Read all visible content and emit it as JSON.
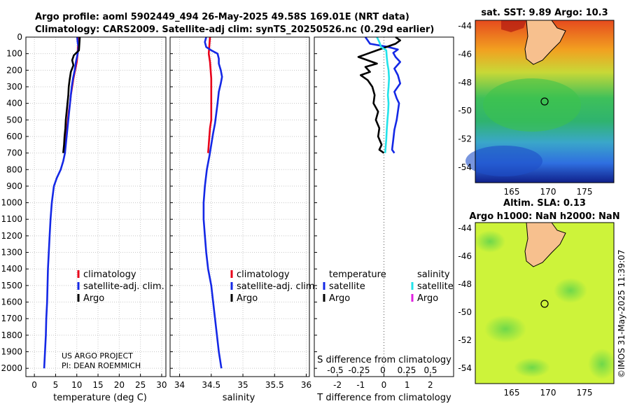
{
  "title": {
    "line1": "Argo profile: aoml 5902449_494 26-May-2025 49.58S 169.01E (NRT data)",
    "line2": "Climatology: CARS2009. Satellite-adj clim: synTS_20250526.nc (0.29d earlier)"
  },
  "colors": {
    "climatology": "#e8001a",
    "satellite": "#1428e6",
    "argo": "#000000",
    "s_satellite": "#22e3ea",
    "s_argo": "#e020e0"
  },
  "chart_data": [
    {
      "type": "line",
      "panel": "temperature",
      "xlabel": "temperature (deg C)",
      "ylabel": "",
      "xlim": [
        -2,
        31
      ],
      "ylim": [
        2050,
        0
      ],
      "xticks": [
        "0",
        "5",
        "10",
        "15",
        "20",
        "25",
        "30"
      ],
      "yticks": [
        "0",
        "100",
        "200",
        "300",
        "400",
        "500",
        "600",
        "700",
        "800",
        "900",
        "1000",
        "1100",
        "1200",
        "1300",
        "1400",
        "1500",
        "1600",
        "1700",
        "1800",
        "1900",
        "2000"
      ],
      "grid": true,
      "legend": [
        "climatology",
        "satellite-adj. clim.",
        "Argo"
      ],
      "annotation": [
        "US ARGO PROJECT",
        "PI: DEAN ROEMMICH"
      ],
      "series": [
        {
          "name": "climatology",
          "points": [
            [
              10.4,
              0
            ],
            [
              10.3,
              50
            ],
            [
              10.2,
              100
            ],
            [
              10.0,
              150
            ],
            [
              9.6,
              200
            ],
            [
              9.2,
              250
            ],
            [
              8.9,
              300
            ],
            [
              8.6,
              350
            ],
            [
              8.4,
              400
            ],
            [
              8.1,
              450
            ],
            [
              7.9,
              500
            ],
            [
              7.7,
              550
            ],
            [
              7.5,
              600
            ],
            [
              7.3,
              650
            ],
            [
              7.0,
              700
            ]
          ]
        },
        {
          "name": "satellite-adj. clim.",
          "points": [
            [
              10.1,
              0
            ],
            [
              10.2,
              30
            ],
            [
              10.4,
              60
            ],
            [
              10.2,
              100
            ],
            [
              9.8,
              150
            ],
            [
              9.5,
              200
            ],
            [
              9.1,
              250
            ],
            [
              8.8,
              300
            ],
            [
              8.6,
              350
            ],
            [
              8.4,
              400
            ],
            [
              8.2,
              450
            ],
            [
              8.0,
              500
            ],
            [
              7.8,
              550
            ],
            [
              7.6,
              600
            ],
            [
              7.4,
              650
            ],
            [
              7.2,
              700
            ],
            [
              6.8,
              750
            ],
            [
              6.2,
              800
            ],
            [
              5.3,
              850
            ],
            [
              4.6,
              900
            ],
            [
              4.1,
              1000
            ],
            [
              3.8,
              1100
            ],
            [
              3.6,
              1200
            ],
            [
              3.4,
              1300
            ],
            [
              3.2,
              1400
            ],
            [
              3.1,
              1500
            ],
            [
              3.0,
              1600
            ],
            [
              2.8,
              1700
            ],
            [
              2.7,
              1800
            ],
            [
              2.5,
              1900
            ],
            [
              2.3,
              2000
            ]
          ]
        },
        {
          "name": "Argo",
          "points": [
            [
              10.7,
              0
            ],
            [
              10.6,
              40
            ],
            [
              10.5,
              80
            ],
            [
              9.3,
              110
            ],
            [
              8.9,
              140
            ],
            [
              9.2,
              170
            ],
            [
              8.6,
              210
            ],
            [
              8.3,
              260
            ],
            [
              8.1,
              300
            ],
            [
              8.0,
              350
            ],
            [
              7.8,
              400
            ],
            [
              7.6,
              450
            ],
            [
              7.4,
              500
            ],
            [
              7.3,
              550
            ],
            [
              7.1,
              600
            ],
            [
              7.0,
              650
            ],
            [
              6.8,
              700
            ]
          ]
        }
      ]
    },
    {
      "type": "line",
      "panel": "salinity",
      "xlabel": "salinity",
      "xlim": [
        33.85,
        36.05
      ],
      "ylim": [
        2050,
        0
      ],
      "xticks": [
        "34",
        "34.5",
        "35",
        "35.5",
        "36"
      ],
      "grid": true,
      "legend": [
        "climatology",
        "satellite-adj. clim.",
        "Argo"
      ],
      "series": [
        {
          "name": "climatology",
          "points": [
            [
              34.48,
              0
            ],
            [
              34.47,
              50
            ],
            [
              34.46,
              100
            ],
            [
              34.48,
              150
            ],
            [
              34.49,
              200
            ],
            [
              34.5,
              250
            ],
            [
              34.5,
              300
            ],
            [
              34.5,
              350
            ],
            [
              34.5,
              400
            ],
            [
              34.5,
              450
            ],
            [
              34.5,
              500
            ],
            [
              34.48,
              550
            ],
            [
              34.47,
              600
            ],
            [
              34.46,
              650
            ],
            [
              34.45,
              700
            ]
          ]
        },
        {
          "name": "satellite-adj. clim.",
          "points": [
            [
              34.42,
              0
            ],
            [
              34.4,
              30
            ],
            [
              34.42,
              60
            ],
            [
              34.5,
              80
            ],
            [
              34.6,
              100
            ],
            [
              34.62,
              130
            ],
            [
              34.62,
              160
            ],
            [
              34.65,
              200
            ],
            [
              34.67,
              240
            ],
            [
              34.65,
              280
            ],
            [
              34.62,
              330
            ],
            [
              34.6,
              400
            ],
            [
              34.58,
              460
            ],
            [
              34.56,
              520
            ],
            [
              34.53,
              580
            ],
            [
              34.5,
              650
            ],
            [
              34.47,
              720
            ],
            [
              34.43,
              800
            ],
            [
              34.4,
              900
            ],
            [
              34.38,
              1000
            ],
            [
              34.38,
              1100
            ],
            [
              34.4,
              1200
            ],
            [
              34.42,
              1300
            ],
            [
              34.45,
              1400
            ],
            [
              34.5,
              1500
            ],
            [
              34.53,
              1600
            ],
            [
              34.56,
              1700
            ],
            [
              34.59,
              1800
            ],
            [
              34.62,
              1900
            ],
            [
              34.66,
              2000
            ]
          ]
        }
      ]
    },
    {
      "type": "line",
      "panel": "difference",
      "xlabel": "T difference from climatology",
      "xlabel_top": "S difference from climatology",
      "xlim": [
        -3.0,
        3.0
      ],
      "ylim": [
        2050,
        0
      ],
      "xticks": [
        "-2",
        "-1",
        "0",
        "1",
        "2"
      ],
      "sticks": [
        "-0.5",
        "-0.25",
        "0",
        "0.25",
        "0.5"
      ],
      "grid": false,
      "legend_headers": [
        "temperature",
        "salinity"
      ],
      "legend": [
        "satellite",
        "Argo",
        "satellite",
        "Argo"
      ],
      "series": [
        {
          "name": "temperature satellite",
          "points": [
            [
              -0.8,
              0
            ],
            [
              -0.6,
              40
            ],
            [
              0.2,
              60
            ],
            [
              0.6,
              75
            ],
            [
              0.4,
              95
            ],
            [
              0.5,
              120
            ],
            [
              0.7,
              150
            ],
            [
              0.45,
              190
            ],
            [
              0.6,
              230
            ],
            [
              0.7,
              280
            ],
            [
              0.45,
              330
            ],
            [
              0.55,
              370
            ],
            [
              0.65,
              400
            ],
            [
              0.6,
              450
            ],
            [
              0.55,
              500
            ],
            [
              0.45,
              560
            ],
            [
              0.4,
              620
            ],
            [
              0.35,
              680
            ],
            [
              0.45,
              700
            ]
          ]
        },
        {
          "name": "temperature Argo",
          "points": [
            [
              0.5,
              0
            ],
            [
              0.7,
              20
            ],
            [
              0.5,
              40
            ],
            [
              -0.3,
              80
            ],
            [
              -0.8,
              105
            ],
            [
              -1.1,
              120
            ],
            [
              -0.7,
              140
            ],
            [
              -0.3,
              160
            ],
            [
              -0.8,
              180
            ],
            [
              -0.6,
              210
            ],
            [
              -1.0,
              230
            ],
            [
              -0.7,
              260
            ],
            [
              -0.5,
              300
            ],
            [
              -0.4,
              350
            ],
            [
              -0.45,
              400
            ],
            [
              -0.25,
              450
            ],
            [
              -0.35,
              500
            ],
            [
              -0.2,
              550
            ],
            [
              -0.25,
              600
            ],
            [
              -0.1,
              650
            ],
            [
              -0.2,
              680
            ],
            [
              0.0,
              700
            ]
          ]
        },
        {
          "name": "salinity satellite",
          "points": [
            [
              -0.3,
              0
            ],
            [
              -0.2,
              30
            ],
            [
              -0.12,
              60
            ],
            [
              0.1,
              80
            ],
            [
              0.12,
              120
            ],
            [
              0.15,
              160
            ],
            [
              0.2,
              200
            ],
            [
              0.22,
              250
            ],
            [
              0.2,
              300
            ],
            [
              0.17,
              350
            ],
            [
              0.2,
              400
            ],
            [
              0.18,
              450
            ],
            [
              0.15,
              500
            ],
            [
              0.12,
              560
            ],
            [
              0.1,
              620
            ],
            [
              0.05,
              700
            ]
          ]
        }
      ]
    }
  ],
  "maps": {
    "sst": {
      "title": "sat. SST: 9.89 Argo: 10.3"
    },
    "sla": {
      "title_line1": "Altim. SLA: 0.13",
      "title_line2": "Argo h1000: NaN h2000: NaN"
    },
    "xticks": [
      "165",
      "170",
      "175"
    ],
    "yticks": [
      "-44",
      "-46",
      "-48",
      "-50",
      "-52",
      "-54"
    ]
  },
  "watermark": "©IMOS 31-May-2025 11:39:07"
}
